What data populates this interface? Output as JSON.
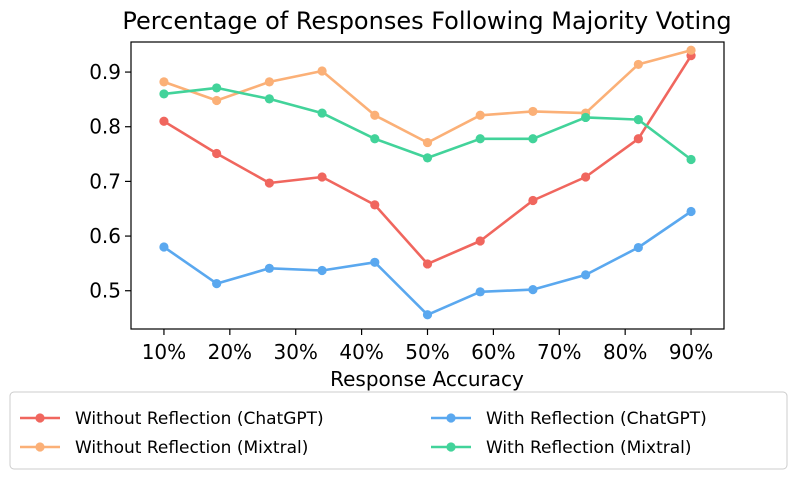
{
  "chart_data": {
    "type": "line",
    "title": "Percentage of Responses Following Majority Voting",
    "xlabel": "Response Accuracy",
    "ylabel": "",
    "x": [
      0.1,
      0.18,
      0.26,
      0.34,
      0.42,
      0.5,
      0.58,
      0.66,
      0.74,
      0.82,
      0.9
    ],
    "x_ticks": [
      0.1,
      0.2,
      0.3,
      0.4,
      0.5,
      0.6,
      0.7,
      0.8,
      0.9
    ],
    "x_tick_labels": [
      "10%",
      "20%",
      "30%",
      "40%",
      "50%",
      "60%",
      "70%",
      "80%",
      "90%"
    ],
    "xlim": [
      0.05,
      0.95
    ],
    "y_ticks": [
      0.5,
      0.6,
      0.7,
      0.8,
      0.9
    ],
    "y_tick_labels": [
      "0.5",
      "0.6",
      "0.7",
      "0.8",
      "0.9"
    ],
    "ylim": [
      0.43,
      0.955
    ],
    "grid": false,
    "legend_position": "bottom, outside plot, two columns",
    "series": [
      {
        "name": "Without Reflection (ChatGPT)",
        "color": "#f0665e",
        "values": [
          0.81,
          0.751,
          0.697,
          0.708,
          0.657,
          0.549,
          0.591,
          0.665,
          0.708,
          0.778,
          0.93
        ]
      },
      {
        "name": "With Reflection (ChatGPT)",
        "color": "#5aa8ef",
        "values": [
          0.58,
          0.513,
          0.541,
          0.537,
          0.552,
          0.456,
          0.498,
          0.502,
          0.529,
          0.579,
          0.645
        ]
      },
      {
        "name": "Without Reflection (Mixtral)",
        "color": "#fbb077",
        "values": [
          0.882,
          0.848,
          0.882,
          0.902,
          0.821,
          0.771,
          0.821,
          0.828,
          0.825,
          0.914,
          0.94
        ]
      },
      {
        "name": "With Reflection (Mixtral)",
        "color": "#42d39a",
        "values": [
          0.86,
          0.871,
          0.851,
          0.825,
          0.778,
          0.743,
          0.778,
          0.778,
          0.817,
          0.813,
          0.74
        ]
      }
    ],
    "legend_order": [
      0,
      2,
      1,
      3
    ]
  }
}
